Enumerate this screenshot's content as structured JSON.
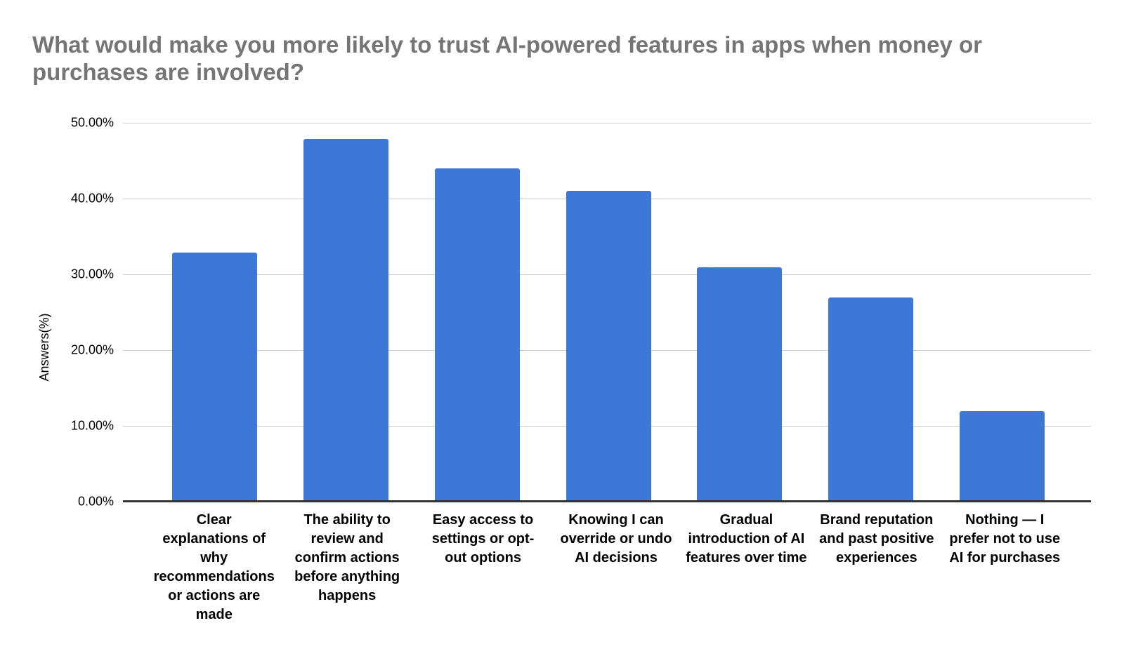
{
  "chart_data": {
    "type": "bar",
    "title": "What would make you more likely to trust AI-powered features in apps when money or purchases are involved?",
    "categories": [
      "Clear explanations of why recommendations or actions are made",
      "The ability to review and confirm actions before anything happens",
      "Easy access to settings or opt-out options",
      "Knowing I can override or undo AI decisions",
      "Gradual introduction of AI features over time",
      "Brand reputation and past positive experiences",
      "Nothing — I prefer not to use AI for purchases"
    ],
    "values": [
      32.9,
      47.9,
      44.0,
      41.0,
      30.9,
      26.9,
      11.9
    ],
    "xlabel": "",
    "ylabel": "Answers(%)",
    "ylim": [
      0,
      50
    ],
    "yticks": [
      0,
      10,
      20,
      30,
      40,
      50
    ],
    "ytick_labels": [
      "0.00%",
      "10.00%",
      "20.00%",
      "30.00%",
      "40.00%",
      "50.00%"
    ],
    "grid": true,
    "legend": "none",
    "colors": {
      "bar": "#3d78d8",
      "title": "#757575",
      "gridline": "#cccccc",
      "baseline": "#333333",
      "axis_text": "#000000"
    }
  }
}
